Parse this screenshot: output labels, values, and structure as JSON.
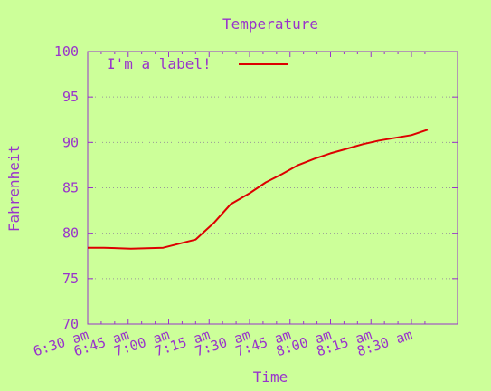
{
  "chart_data": {
    "type": "line",
    "title": "Temperature",
    "xlabel": "Time",
    "ylabel": "Fahrenheit",
    "ylim": [
      70,
      100
    ],
    "yticks": [
      70,
      75,
      80,
      85,
      90,
      95,
      100
    ],
    "xlim": [
      "6:30 am",
      "8:30 am"
    ],
    "xticks": [
      "6:30 am",
      "6:45 am",
      "7:00 am",
      "7:15 am",
      "7:30 am",
      "7:45 am",
      "8:00 am",
      "8:15 am",
      "8:30 am"
    ],
    "grid": "horizontal-dotted",
    "legend": "top-left",
    "series": [
      {
        "name": "I'm a label!",
        "color": "#dd0000",
        "x": [
          "6:30 am",
          "6:36 am",
          "6:46 am",
          "6:58 am",
          "7:10 am",
          "7:17 am",
          "7:23 am",
          "7:30 am",
          "7:36 am",
          "7:42 am",
          "7:48 am",
          "7:54 am",
          "8:00 am",
          "8:06 am",
          "8:12 am",
          "8:18 am",
          "8:24 am",
          "8:30 am",
          "8:36 am"
        ],
        "y": [
          78.4,
          78.4,
          78.3,
          78.4,
          79.3,
          81.2,
          83.2,
          84.4,
          85.6,
          86.5,
          87.5,
          88.2,
          88.8,
          89.3,
          89.8,
          90.2,
          90.5,
          90.8,
          91.4
        ]
      }
    ]
  },
  "colors": {
    "background": "#ccff99",
    "text": "#9933cc",
    "axis": "#9933cc",
    "grid": "#999999"
  }
}
